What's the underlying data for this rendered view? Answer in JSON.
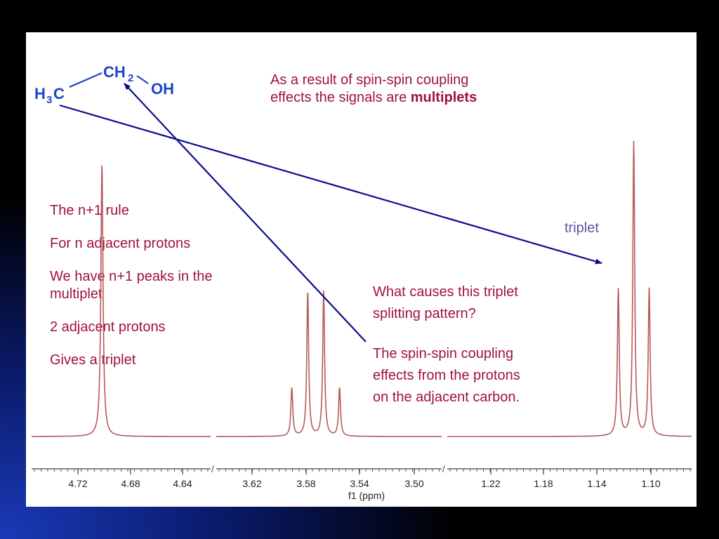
{
  "colors": {
    "text": "#a0123c",
    "molecule": "#1c45c8",
    "arrow": "#0b0b8c",
    "spectrum": "#b65a5a",
    "triplet_label": "#5a5aa0"
  },
  "molecule": {
    "h3c_main": "H",
    "h3c_sub": "3",
    "h3c_c": "C",
    "ch2_main": "CH",
    "ch2_sub": "2",
    "oh": "OH"
  },
  "heading": {
    "line1": "As a result of spin-spin coupling",
    "line2_pre": "effects the signals are ",
    "line2_bold": "multiplets"
  },
  "rule": {
    "p1": "The n+1 rule",
    "p2": "For n adjacent protons",
    "p3a": "We have n+1 peaks in the",
    "p3b": "multiplet",
    "p4": "2 adjacent protons",
    "p5": "Gives a triplet"
  },
  "question": {
    "line1": "What causes this triplet",
    "line2": "splitting pattern?"
  },
  "answer": {
    "line1": "The spin-spin coupling",
    "line2": "effects from the protons",
    "line3": "on the adjacent carbon."
  },
  "triplet_label": "triplet",
  "axis": {
    "title": "f1 (ppm)",
    "segments": [
      {
        "ticks": [
          "4.72",
          "4.68",
          "4.64"
        ]
      },
      {
        "ticks": [
          "3.62",
          "3.58",
          "3.54",
          "3.50"
        ]
      },
      {
        "ticks": [
          "1.22",
          "1.18",
          "1.14",
          "1.10"
        ]
      }
    ]
  },
  "peaks": {
    "oh_singlet_ppm": 4.7,
    "ch2_quartet_ppm": [
      3.588,
      3.576,
      3.564,
      3.552
    ],
    "ch2_quartet_rel": [
      1,
      3,
      3,
      1
    ],
    "ch3_triplet_ppm": [
      1.122,
      1.11,
      1.098
    ],
    "ch3_triplet_rel": [
      1,
      2,
      1
    ]
  }
}
